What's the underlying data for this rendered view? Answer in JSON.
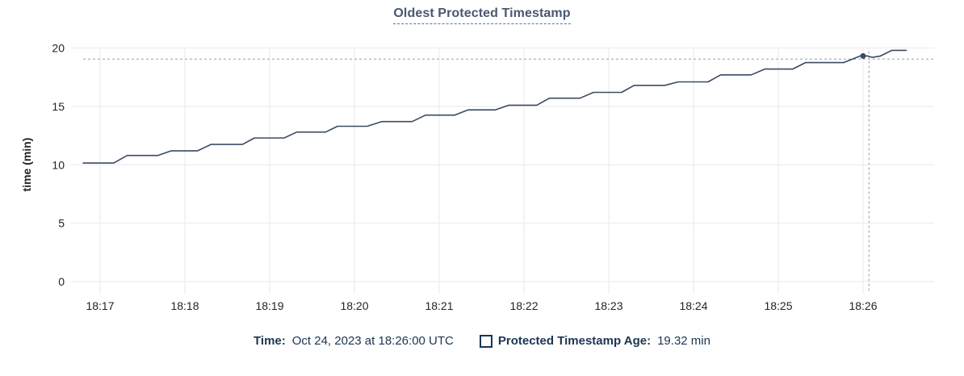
{
  "title": "Oldest Protected Timestamp",
  "y_axis_title": "time (min)",
  "footer": {
    "time_label": "Time:",
    "time_value": "Oct 24, 2023 at 18:26:00 UTC",
    "series_label": "Protected Timestamp Age:",
    "series_value": "19.32 min",
    "checkbox_checked": false
  },
  "colors": {
    "background": "#ffffff",
    "title_text": "#475872",
    "title_underline": "#5f7894",
    "axis_text": "#242424",
    "grid": "#f0f0f0",
    "series_line": "#3b4a63",
    "crosshair": "#a2b7c4",
    "legend_text": "#1c3552"
  },
  "chart_data": {
    "type": "line",
    "title": "Oldest Protected Timestamp",
    "xlabel": "",
    "ylabel": "time (min)",
    "ylim": [
      0,
      20
    ],
    "y_ticks": [
      0,
      5,
      10,
      15,
      20
    ],
    "x_tick_labels": [
      "18:17",
      "18:18",
      "18:19",
      "18:20",
      "18:21",
      "18:22",
      "18:23",
      "18:24",
      "18:25",
      "18:26"
    ],
    "x_tick_offsets_min": [
      0,
      1,
      2,
      3,
      4,
      5,
      6,
      7,
      8,
      9
    ],
    "grid": true,
    "legend_position": "bottom",
    "line_style": "step-ramp",
    "series": [
      {
        "name": "Protected Timestamp Age",
        "unit": "min",
        "points_offset_min_vs_value": [
          [
            -0.2,
            10.15
          ],
          [
            0.16,
            10.15
          ],
          [
            0.32,
            10.8
          ],
          [
            0.68,
            10.8
          ],
          [
            0.84,
            11.2
          ],
          [
            1.15,
            11.2
          ],
          [
            1.31,
            11.75
          ],
          [
            1.68,
            11.75
          ],
          [
            1.82,
            12.3
          ],
          [
            2.17,
            12.3
          ],
          [
            2.32,
            12.8
          ],
          [
            2.66,
            12.8
          ],
          [
            2.8,
            13.3
          ],
          [
            3.15,
            13.3
          ],
          [
            3.32,
            13.7
          ],
          [
            3.68,
            13.7
          ],
          [
            3.84,
            14.25
          ],
          [
            4.18,
            14.25
          ],
          [
            4.34,
            14.7
          ],
          [
            4.66,
            14.7
          ],
          [
            4.82,
            15.1
          ],
          [
            5.15,
            15.1
          ],
          [
            5.3,
            15.7
          ],
          [
            5.66,
            15.7
          ],
          [
            5.82,
            16.2
          ],
          [
            6.15,
            16.2
          ],
          [
            6.3,
            16.8
          ],
          [
            6.66,
            16.8
          ],
          [
            6.82,
            17.1
          ],
          [
            7.17,
            17.1
          ],
          [
            7.32,
            17.7
          ],
          [
            7.68,
            17.7
          ],
          [
            7.84,
            18.2
          ],
          [
            8.17,
            18.2
          ],
          [
            8.32,
            18.75
          ],
          [
            8.77,
            18.75
          ],
          [
            8.97,
            19.32
          ],
          [
            9.05,
            19.32
          ],
          [
            9.11,
            19.2
          ],
          [
            9.2,
            19.3
          ],
          [
            9.34,
            19.8
          ],
          [
            9.51,
            19.8
          ]
        ]
      }
    ],
    "hover": {
      "time": "Oct 24, 2023 at 18:26:00 UTC",
      "point_offset_min": 9.0,
      "point_value_min": 19.32,
      "cursor_offset_min": 9.07,
      "cursor_value_min": 19.05
    }
  }
}
